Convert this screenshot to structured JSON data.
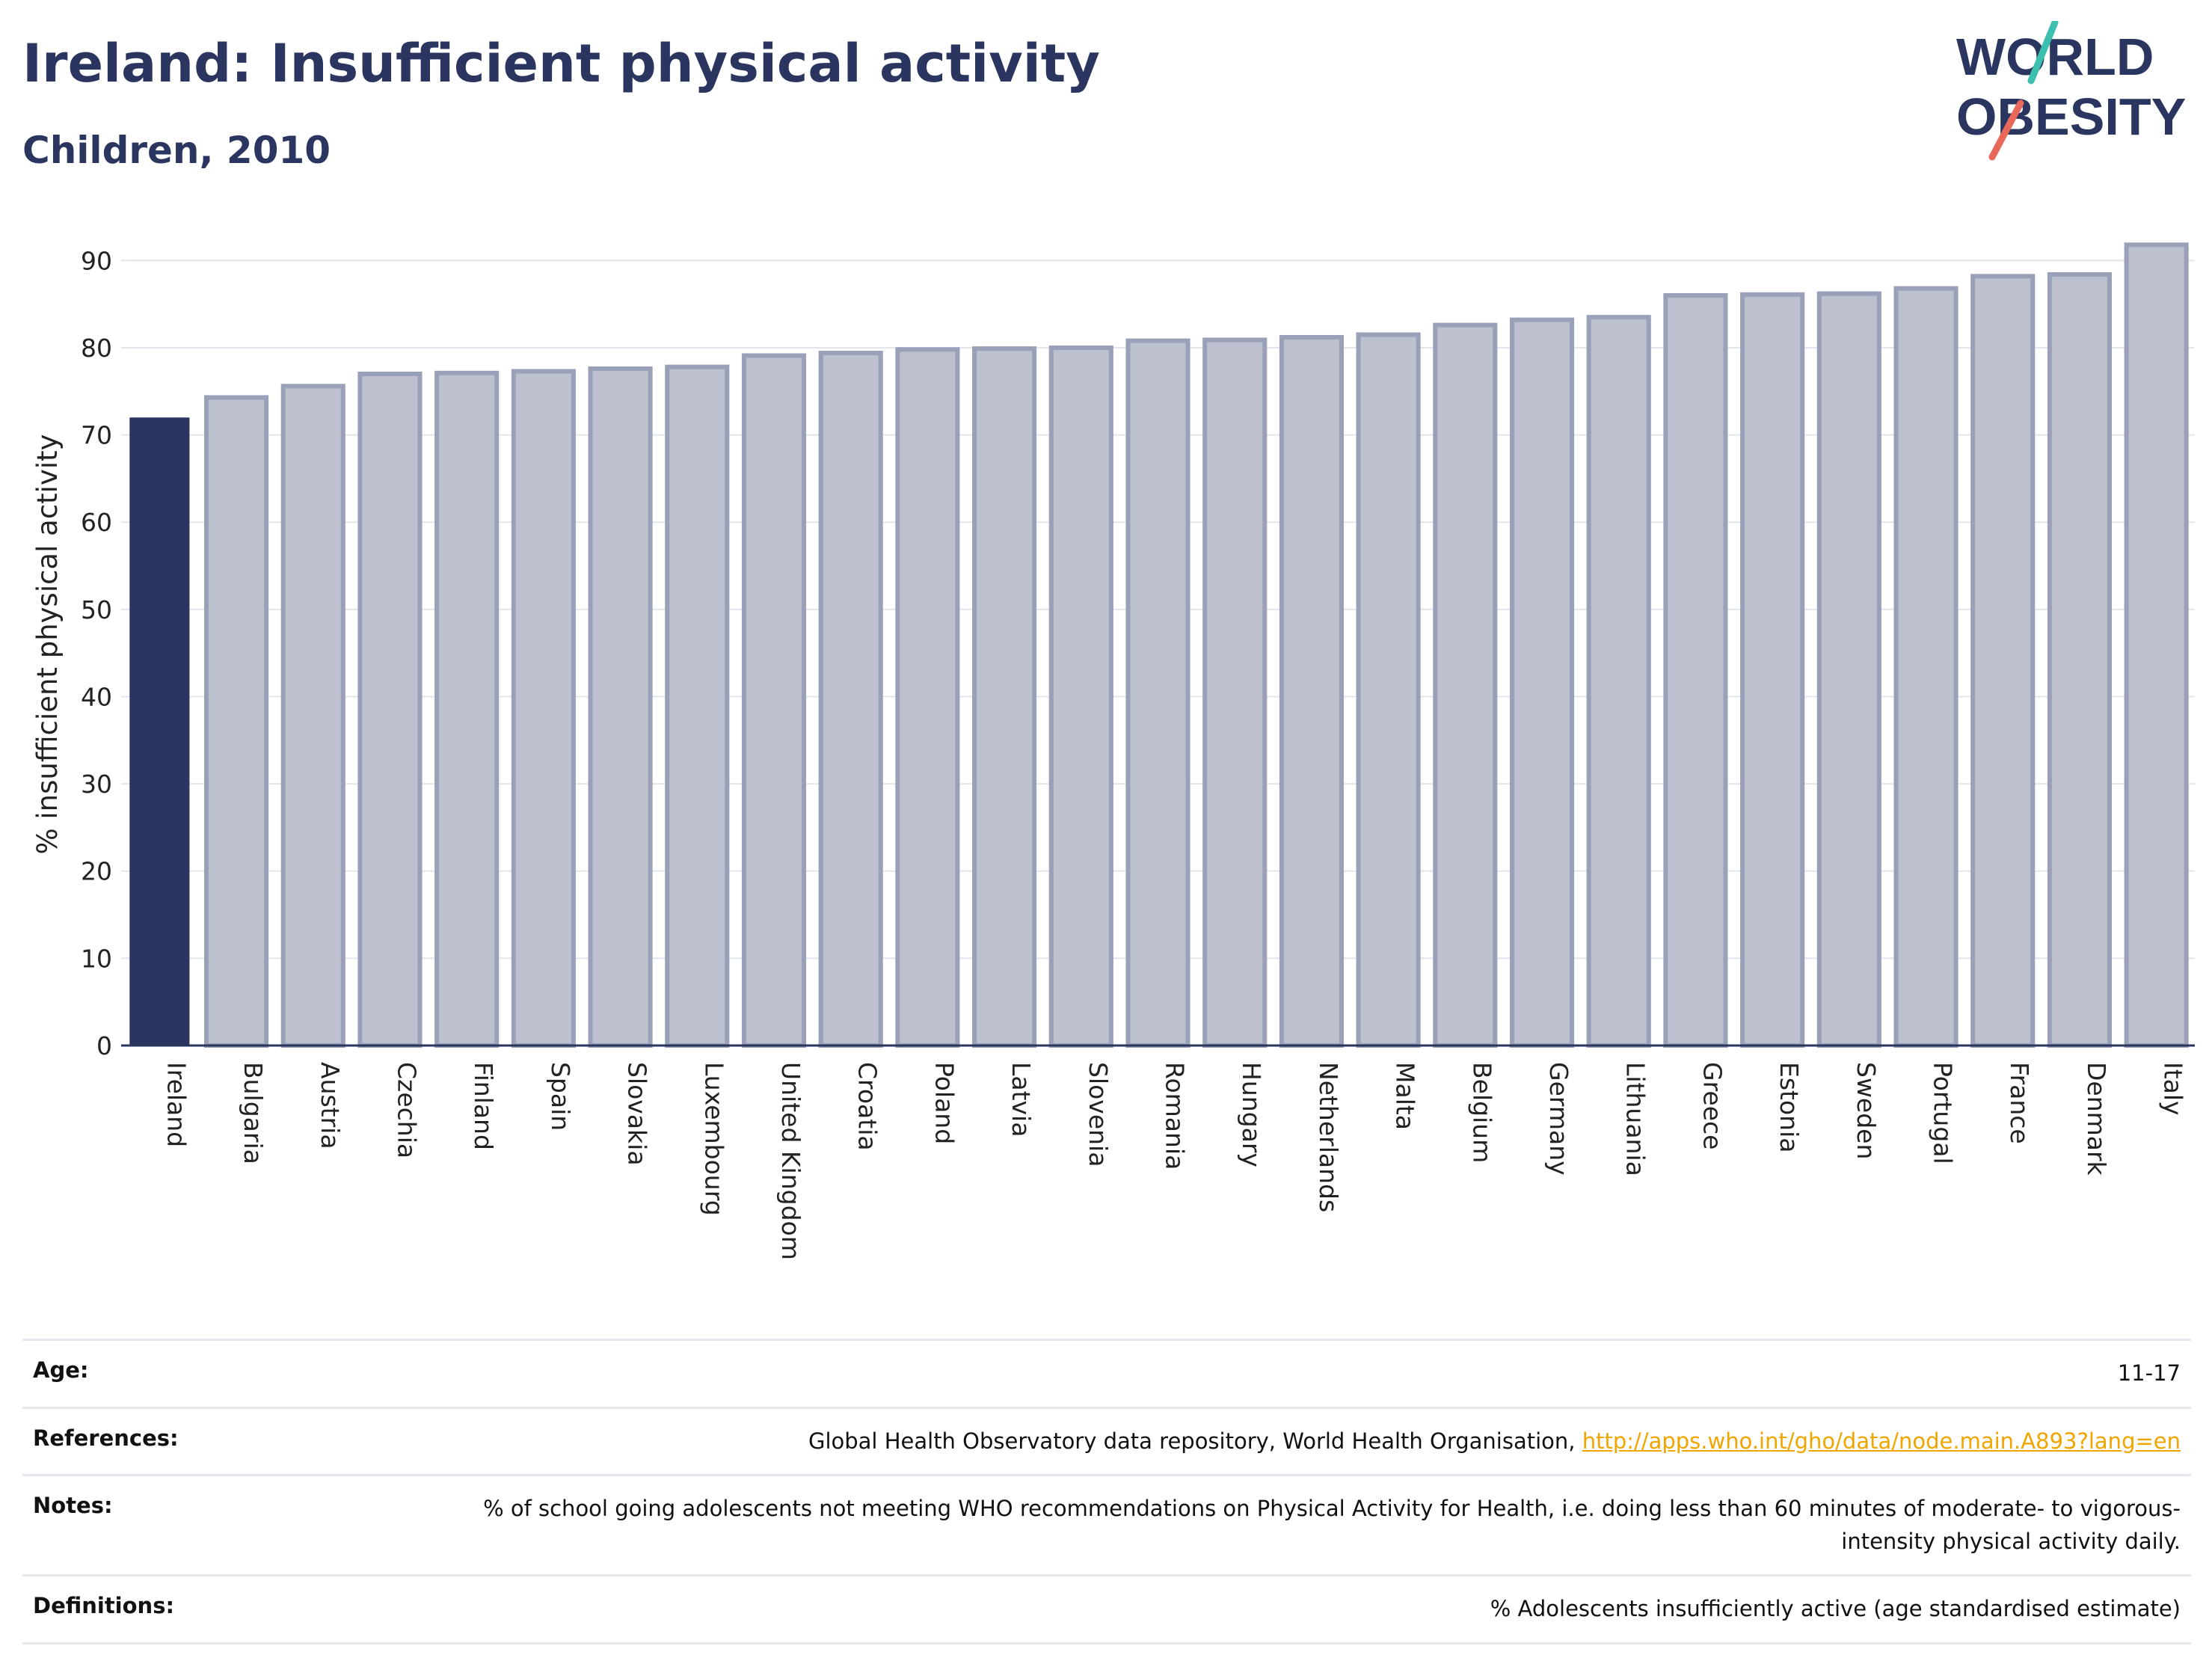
{
  "header": {
    "title": "Ireland: Insufficient physical activity",
    "subtitle": "Children, 2010"
  },
  "logo": {
    "line1": "WORLD",
    "line2": "OBESITY",
    "accent_teal": "#3dbfb0",
    "accent_red": "#e8685a"
  },
  "colors": {
    "highlight": "#2b3562",
    "bar_fill": "#bcc0cf",
    "bar_stroke": "#9aa0b8",
    "text": "#2a3560",
    "link": "#f0a500"
  },
  "chart_data": {
    "type": "bar",
    "title": "Ireland: Insufficient physical activity",
    "subtitle": "Children, 2010",
    "xlabel": "",
    "ylabel": "% insufficient physical activity",
    "ylim": [
      0,
      92
    ],
    "yticks": [
      0,
      10,
      20,
      30,
      40,
      50,
      60,
      70,
      80,
      90
    ],
    "grid": true,
    "highlight": "Ireland",
    "categories": [
      "Ireland",
      "Bulgaria",
      "Austria",
      "Czechia",
      "Finland",
      "Spain",
      "Slovakia",
      "Luxembourg",
      "United Kingdom",
      "Croatia",
      "Poland",
      "Latvia",
      "Slovenia",
      "Romania",
      "Hungary",
      "Netherlands",
      "Malta",
      "Belgium",
      "Germany",
      "Lithuania",
      "Greece",
      "Estonia",
      "Sweden",
      "Portugal",
      "France",
      "Denmark",
      "Italy"
    ],
    "values": [
      72.0,
      74.3,
      75.6,
      77.0,
      77.1,
      77.3,
      77.6,
      77.8,
      79.1,
      79.4,
      79.8,
      79.9,
      80.0,
      80.8,
      80.9,
      81.2,
      81.5,
      82.6,
      83.2,
      83.5,
      86.0,
      86.1,
      86.2,
      86.8,
      88.2,
      88.4,
      91.8
    ]
  },
  "details": [
    {
      "key": "Age:",
      "value": "11-17"
    },
    {
      "key": "References:",
      "value": "Global Health Observatory data repository, World Health Organisation, ",
      "link": "http://apps.who.int/gho/data/node.main.A893?lang=en"
    },
    {
      "key": "Notes:",
      "value": "% of school going adolescents not meeting WHO recommendations on Physical Activity for Health, i.e. doing less than 60 minutes of moderate- to vigorous-intensity physical activity daily."
    },
    {
      "key": "Definitions:",
      "value": "% Adolescents insufficiently active (age standardised estimate)"
    }
  ]
}
